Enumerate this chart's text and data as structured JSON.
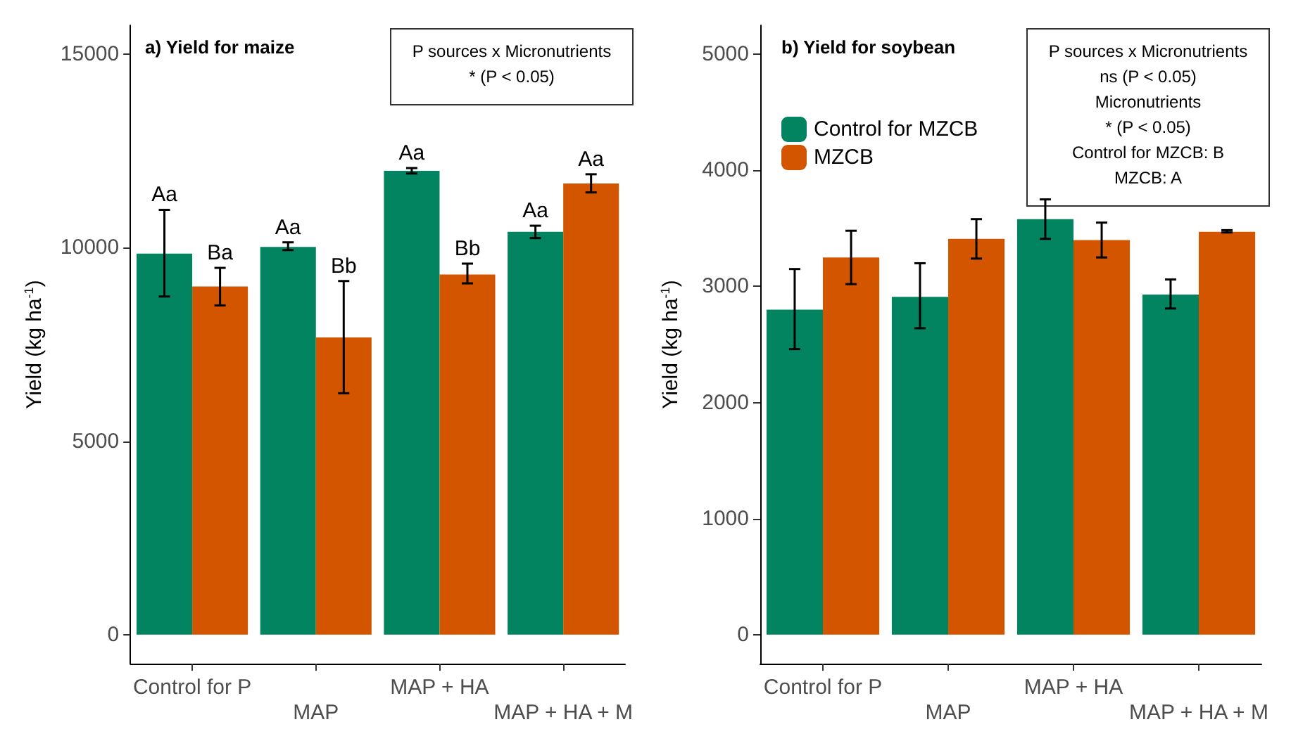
{
  "chart_data": [
    {
      "type": "bar",
      "title": "a) Yield for maize",
      "ylabel": "Yield (kg ha$^{-1}$)",
      "categories": [
        "Control for P",
        "MAP",
        "MAP + HA",
        "MAP + HA + M"
      ],
      "series": [
        {
          "color": "#01845f",
          "values": [
            9850,
            10020,
            11990,
            10410
          ],
          "errors": [
            [
              8740,
              10980
            ],
            [
              9940,
              10140
            ],
            [
              11920,
              12060
            ],
            [
              10250,
              10570
            ]
          ],
          "value_labels": [
            "Aa",
            "Aa",
            "Aa",
            "Aa"
          ]
        },
        {
          "color": "#d45500",
          "values": [
            9000,
            7680,
            9310,
            11660
          ],
          "errors": [
            [
              8510,
              9480
            ],
            [
              6240,
              9140
            ],
            [
              9080,
              9590
            ],
            [
              11430,
              11900
            ]
          ],
          "value_labels": [
            "Ba",
            "Bb",
            "Bb",
            "Aa"
          ]
        }
      ],
      "ylim": [
        -750,
        15750
      ],
      "yticks": [
        0,
        5000,
        10000,
        15000
      ],
      "grid": false,
      "legend": false,
      "annotations": [
        "P sources x Micronutrients",
        "* (P < 0.05)"
      ]
    },
    {
      "type": "bar",
      "title": "b) Yield for soybean",
      "ylabel": "Yield (kg ha$^{-1}$)",
      "categories": [
        "Control for P",
        "MAP",
        "MAP + HA",
        "MAP + HA + M"
      ],
      "series": [
        {
          "name": "Control for MZCB",
          "color": "#01845f",
          "values": [
            2800,
            2910,
            3580,
            2930
          ],
          "errors": [
            [
              2460,
              3150
            ],
            [
              2640,
              3200
            ],
            [
              3410,
              3750
            ],
            [
              2810,
              3060
            ]
          ]
        },
        {
          "name": "MZCB",
          "color": "#d45500",
          "values": [
            3250,
            3410,
            3400,
            3470
          ],
          "errors": [
            [
              3020,
              3480
            ],
            [
              3240,
              3580
            ],
            [
              3250,
              3550
            ],
            [
              3465,
              3485
            ]
          ]
        }
      ],
      "ylim": [
        -250,
        5250
      ],
      "yticks": [
        0,
        1000,
        2000,
        3000,
        4000,
        5000
      ],
      "grid": false,
      "legend": "top left",
      "annotations": [
        "P sources x Micronutrients",
        "ns (P < 0.05)",
        "Micronutrients",
        "* (P < 0.05)",
        "Control for MZCB: B",
        "MZCB: A"
      ]
    }
  ]
}
